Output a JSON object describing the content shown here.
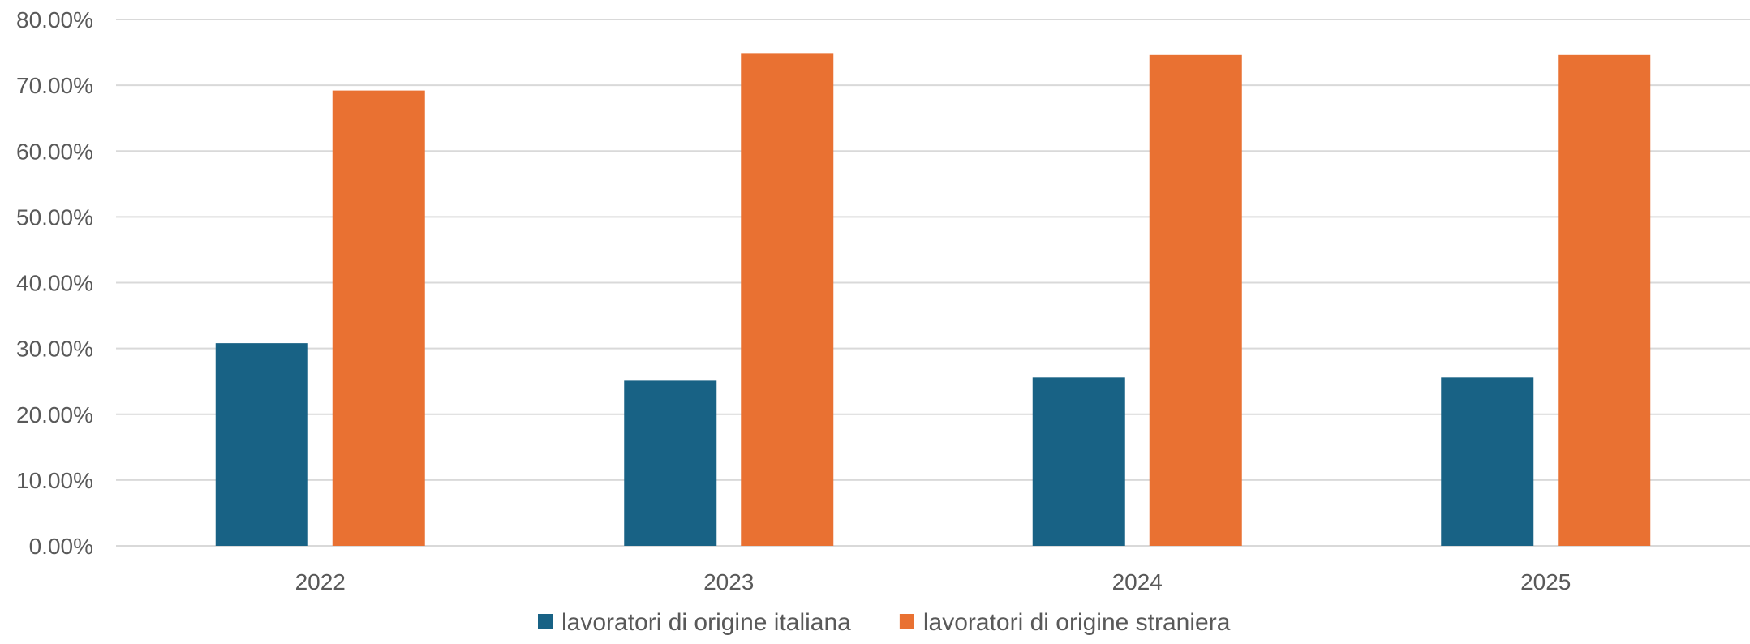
{
  "chart_data": {
    "type": "bar",
    "title": "",
    "xlabel": "",
    "ylabel": "",
    "categories": [
      "2022",
      "2023",
      "2024",
      "2025"
    ],
    "series": [
      {
        "name": "lavoratori di origine italiana",
        "values": [
          30.8,
          25.1,
          25.6,
          25.6
        ],
        "color": "#186285"
      },
      {
        "name": "lavoratori di origine straniera",
        "values": [
          69.2,
          74.9,
          74.6,
          74.6
        ],
        "color": "#E97132"
      }
    ],
    "ylim": [
      0,
      80
    ],
    "yticks": [
      "0.00%",
      "10.00%",
      "20.00%",
      "30.00%",
      "40.00%",
      "50.00%",
      "60.00%",
      "70.00%",
      "80.00%"
    ],
    "grid": true,
    "gridline_color": "#D9D9D9",
    "legend_position": "bottom"
  }
}
